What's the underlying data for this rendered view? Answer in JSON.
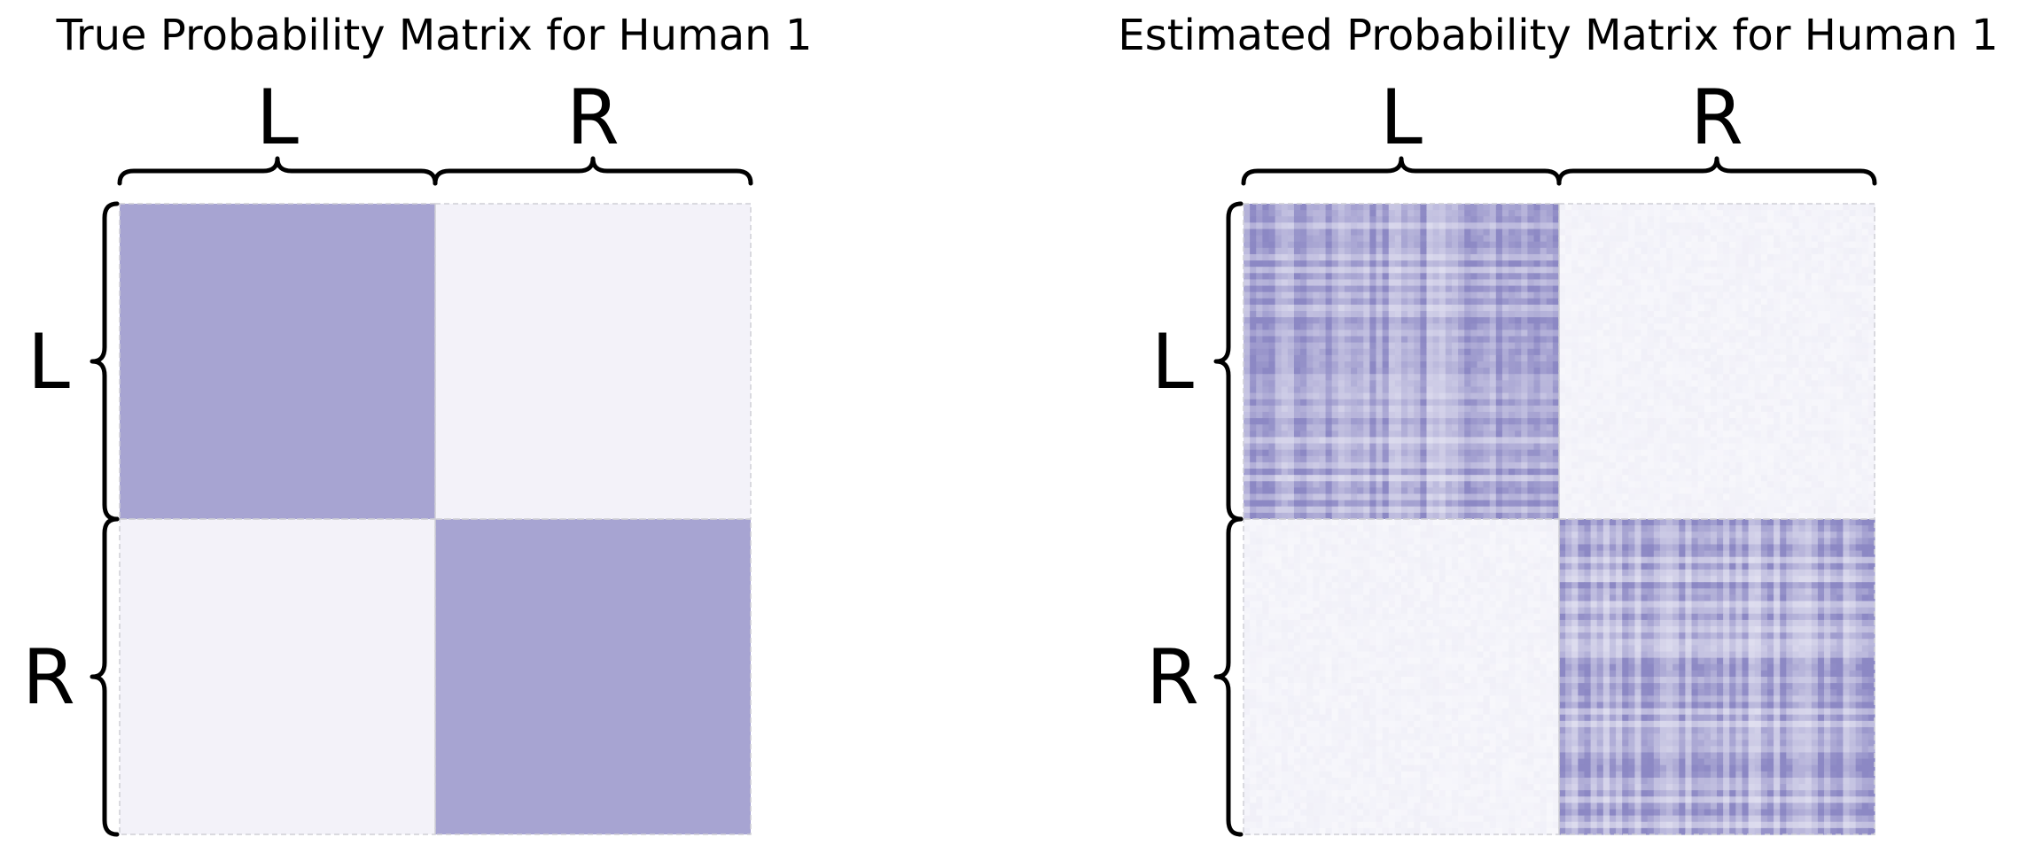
{
  "chart_data": [
    {
      "type": "heatmap",
      "title": "True Probability Matrix for Human 1",
      "row_labels": [
        "L",
        "R"
      ],
      "col_labels": [
        "L",
        "R"
      ],
      "block_values": [
        [
          0.75,
          0.05
        ],
        [
          0.05,
          0.75
        ]
      ],
      "pattern": "uniform",
      "colormap": "Purples"
    },
    {
      "type": "heatmap",
      "title": "Estimated Probability Matrix for Human 1",
      "row_labels": [
        "L",
        "R"
      ],
      "col_labels": [
        "L",
        "R"
      ],
      "block_values": [
        [
          0.75,
          0.05
        ],
        [
          0.05,
          0.75
        ]
      ],
      "pattern": "noisy",
      "colormap": "Purples"
    }
  ]
}
